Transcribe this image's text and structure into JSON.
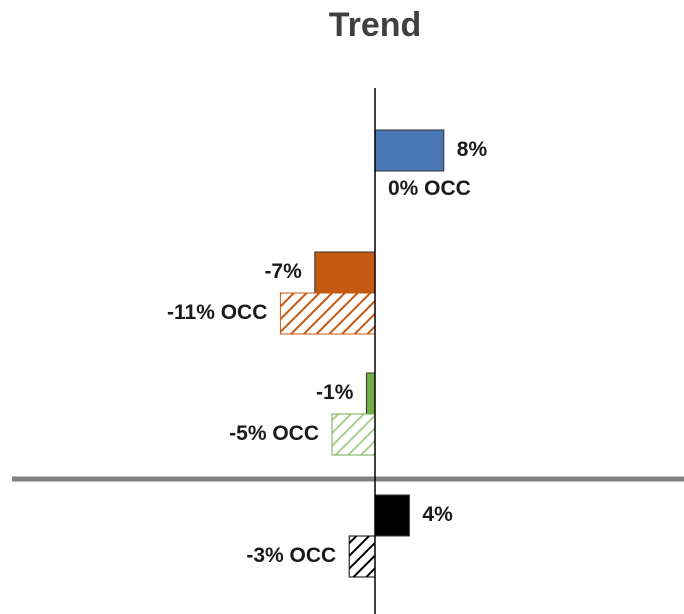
{
  "chart_data": {
    "type": "bar",
    "orientation": "horizontal",
    "title": "Trend",
    "colors": [
      "#4a78b5",
      "#c55a11",
      "#70ad47",
      "#000000"
    ],
    "series": [
      {
        "values": [
          8,
          -7,
          -1,
          4
        ],
        "value_labels": [
          "8%",
          "-7%",
          "-1%",
          "4%"
        ],
        "pattern": "solid"
      },
      {
        "values": [
          0,
          -11,
          -5,
          -3
        ],
        "value_labels": [
          "0% OCC",
          "-11% OCC",
          "-5% OCC",
          "-3% OCC"
        ],
        "pattern": "hatched"
      }
    ],
    "xlim": [
      -40,
      35
    ],
    "separator_after": 2
  }
}
